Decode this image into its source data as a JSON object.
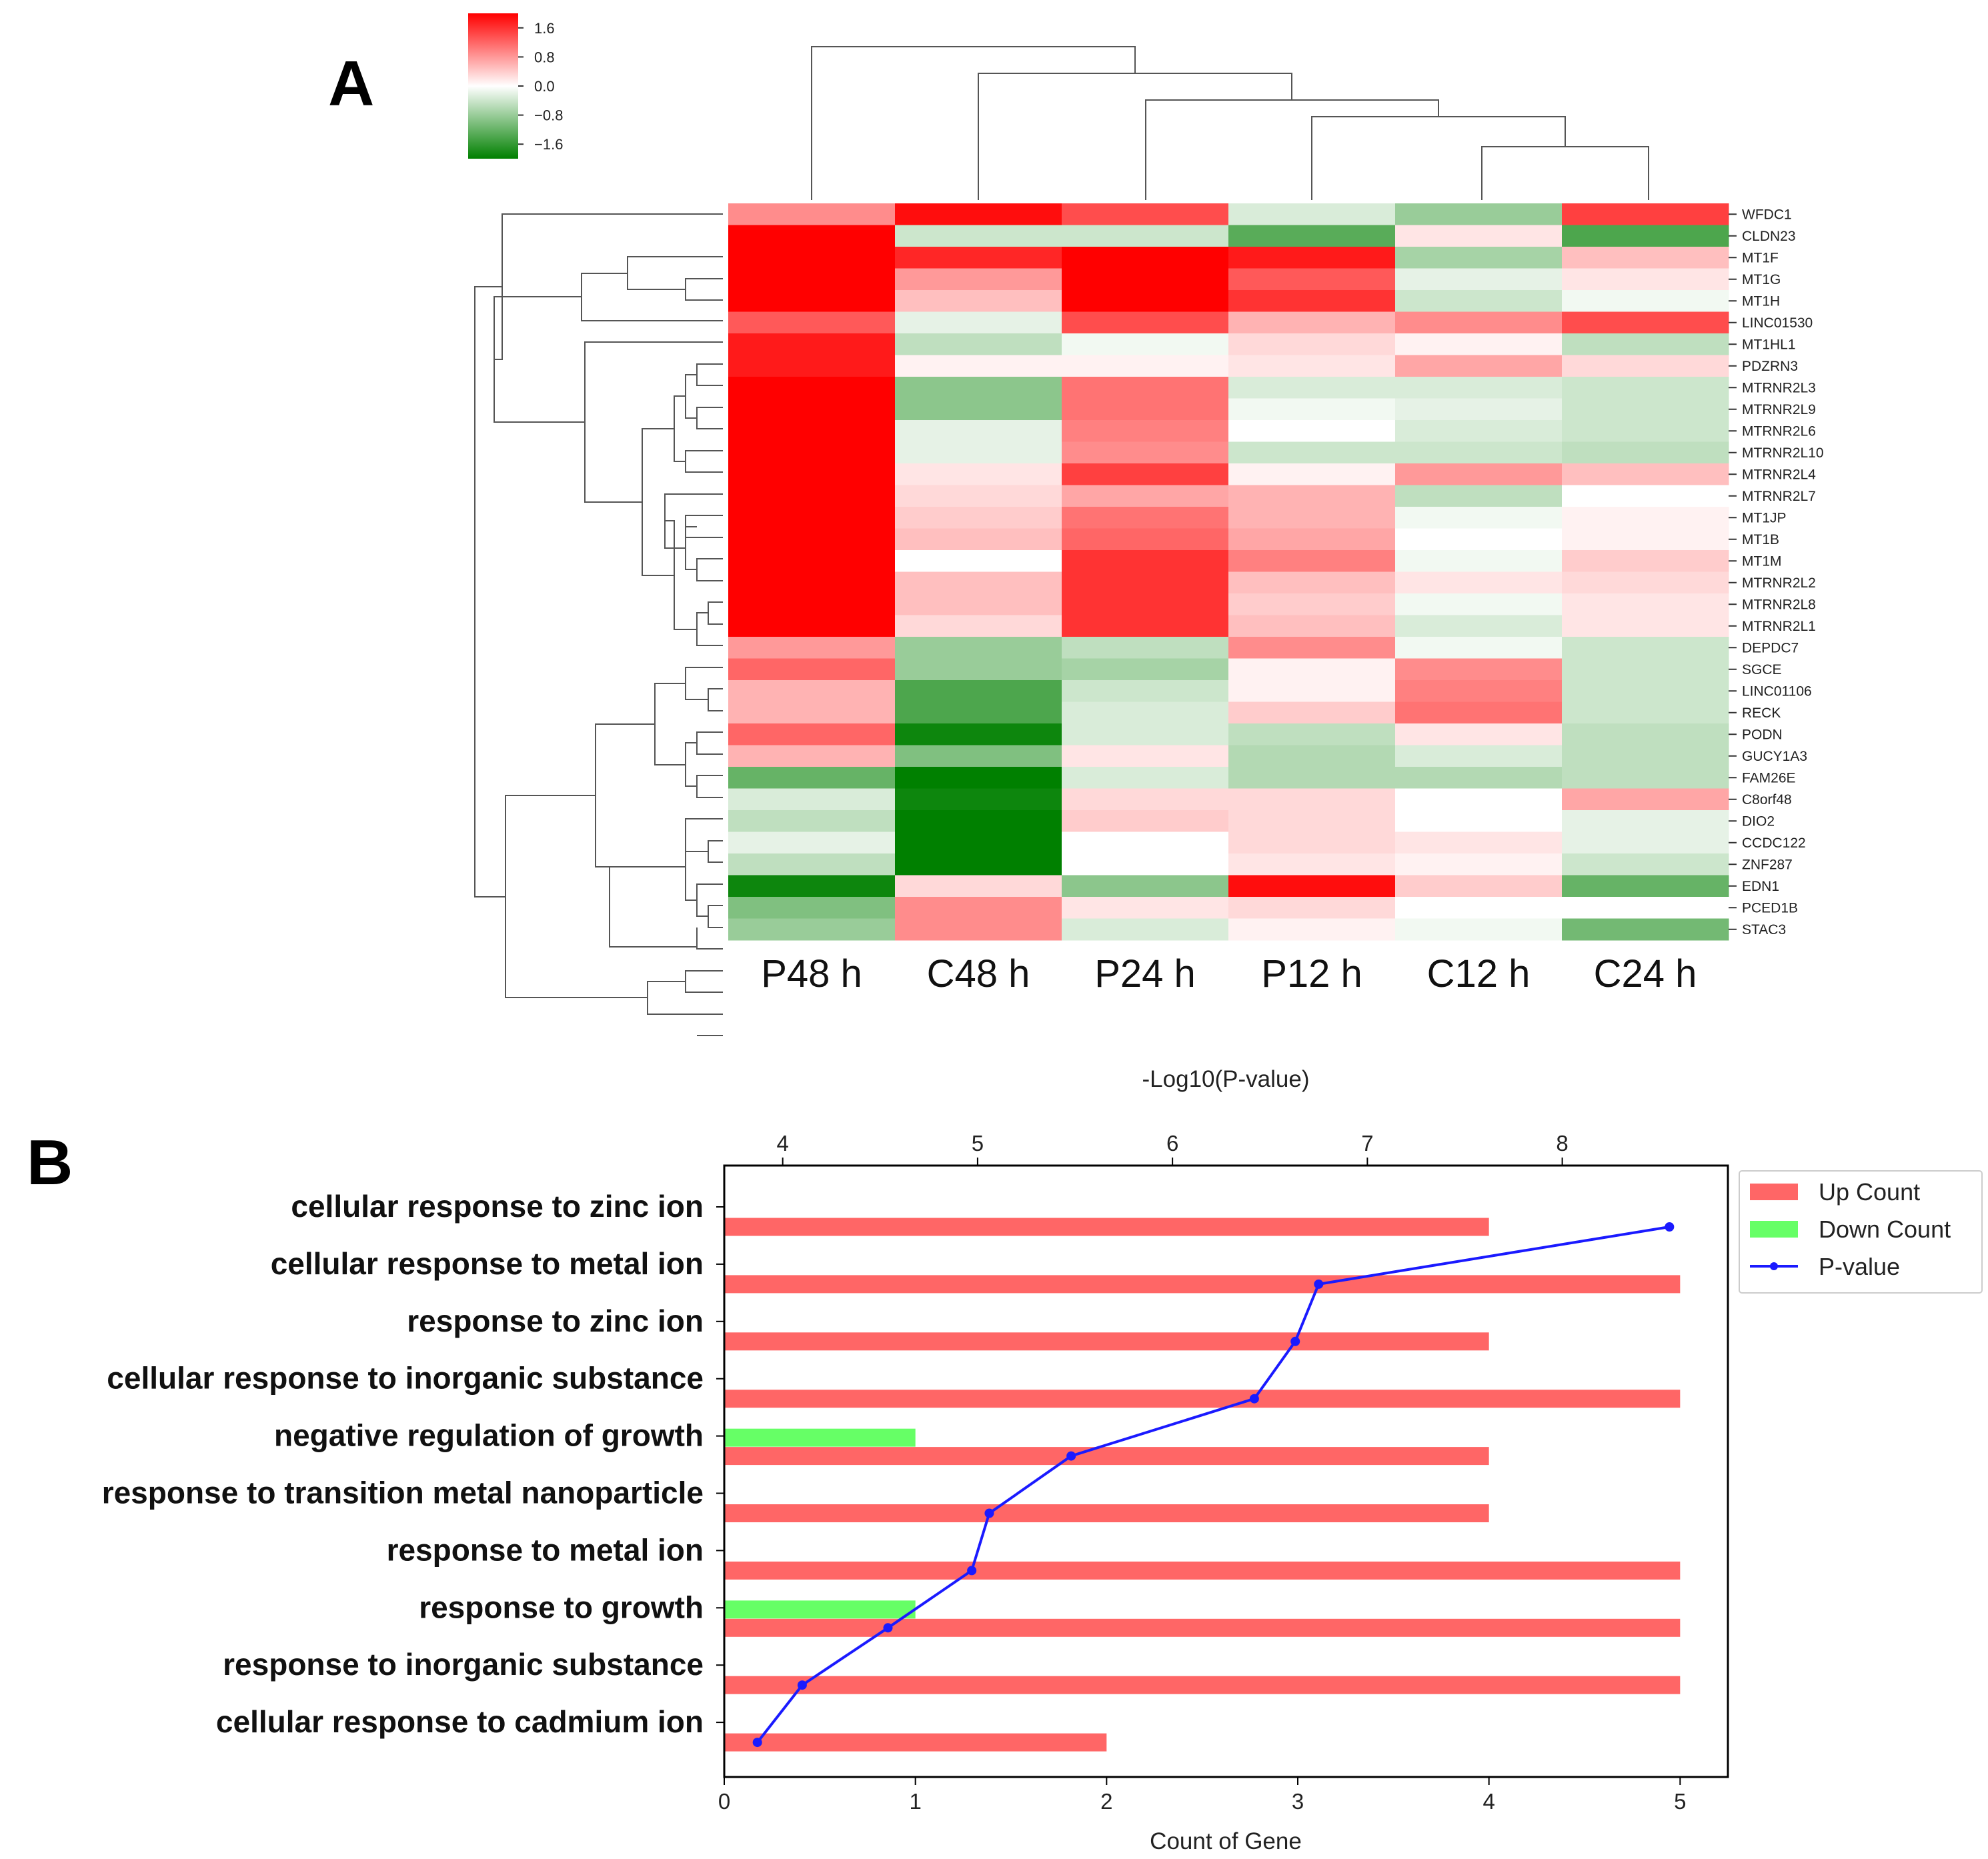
{
  "panel_a": {
    "letter": "A",
    "colorbar": {
      "ticks": [
        "1.6",
        "0.8",
        "0.0",
        "−0.8",
        "−1.6"
      ],
      "tick_values": [
        1.6,
        0.8,
        0.0,
        -0.8,
        -1.6
      ],
      "range": [
        -2.0,
        2.0
      ],
      "high_color": "#ff0000",
      "mid_color": "#ffffff",
      "low_color": "#008000"
    }
  },
  "panel_b": {
    "letter": "B",
    "legend": {
      "up_label": "Up Count",
      "down_label": "Down Count",
      "pvalue_label": "P-value"
    },
    "colors": {
      "up": "#ff6666",
      "down": "#66ff66",
      "line": "#1a1aff"
    }
  },
  "chart_data": [
    {
      "type": "heatmap",
      "title": "",
      "columns": [
        "P48 h",
        "C48 h",
        "P24 h",
        "P12 h",
        "C12 h",
        "C24 h"
      ],
      "rows": [
        "WFDC1",
        "CLDN23",
        "MT1F",
        "MT1G",
        "MT1H",
        "LINC01530",
        "MT1HL1",
        "PDZRN3",
        "MTRNR2L3",
        "MTRNR2L9",
        "MTRNR2L6",
        "MTRNR2L10",
        "MTRNR2L4",
        "MTRNR2L7",
        "MT1JP",
        "MT1B",
        "MT1M",
        "MTRNR2L2",
        "MTRNR2L8",
        "MTRNR2L1",
        "DEPDC7",
        "SGCE",
        "LINC01106",
        "RECK",
        "PODN",
        "GUCY1A3",
        "FAM26E",
        "C8orf48",
        "DIO2",
        "CCDC122",
        "ZNF287",
        "EDN1",
        "PCED1B",
        "STAC3"
      ],
      "values": [
        [
          0.9,
          1.9,
          1.4,
          -0.3,
          -0.8,
          1.5
        ],
        [
          2.0,
          -0.4,
          -0.4,
          -1.3,
          0.2,
          -1.4
        ],
        [
          2.0,
          1.7,
          2.0,
          1.8,
          -0.7,
          0.5
        ],
        [
          2.0,
          0.8,
          2.0,
          1.3,
          -0.2,
          0.2
        ],
        [
          2.0,
          0.5,
          2.0,
          1.6,
          -0.4,
          -0.1
        ],
        [
          1.3,
          -0.2,
          1.4,
          0.6,
          0.9,
          1.4
        ],
        [
          1.8,
          -0.5,
          -0.1,
          0.3,
          0.1,
          -0.5
        ],
        [
          1.8,
          0.1,
          0.1,
          0.2,
          0.7,
          0.3
        ],
        [
          2.0,
          -0.9,
          1.1,
          -0.3,
          -0.3,
          -0.4
        ],
        [
          2.0,
          -0.9,
          1.1,
          -0.1,
          -0.2,
          -0.4
        ],
        [
          2.0,
          -0.2,
          1.0,
          0.0,
          -0.3,
          -0.4
        ],
        [
          2.0,
          -0.2,
          0.9,
          -0.4,
          -0.4,
          -0.5
        ],
        [
          2.0,
          0.2,
          1.5,
          0.1,
          0.8,
          0.5
        ],
        [
          2.0,
          0.3,
          0.7,
          0.6,
          -0.5,
          0.0
        ],
        [
          2.0,
          0.4,
          1.1,
          0.6,
          -0.1,
          0.1
        ],
        [
          2.0,
          0.5,
          1.2,
          0.7,
          0.0,
          0.1
        ],
        [
          2.0,
          0.0,
          1.6,
          1.0,
          -0.1,
          0.4
        ],
        [
          2.0,
          0.5,
          1.6,
          0.5,
          0.2,
          0.3
        ],
        [
          2.0,
          0.5,
          1.6,
          0.4,
          -0.1,
          0.2
        ],
        [
          2.0,
          0.3,
          1.6,
          0.5,
          -0.3,
          0.2
        ],
        [
          0.8,
          -0.8,
          -0.5,
          0.9,
          -0.1,
          -0.4
        ],
        [
          1.2,
          -0.8,
          -0.7,
          0.1,
          0.9,
          -0.4
        ],
        [
          0.6,
          -1.4,
          -0.4,
          0.1,
          1.0,
          -0.4
        ],
        [
          0.6,
          -1.4,
          -0.3,
          0.4,
          1.1,
          -0.4
        ],
        [
          1.2,
          -1.9,
          -0.3,
          -0.5,
          0.2,
          -0.5
        ],
        [
          0.6,
          -1.0,
          0.2,
          -0.6,
          -0.3,
          -0.5
        ],
        [
          -1.2,
          -2.0,
          -0.3,
          -0.6,
          -0.6,
          -0.5
        ],
        [
          -0.3,
          -1.9,
          0.3,
          0.3,
          0.0,
          0.7
        ],
        [
          -0.5,
          -2.0,
          0.4,
          0.3,
          0.0,
          -0.2
        ],
        [
          -0.2,
          -2.0,
          0.0,
          0.3,
          0.2,
          -0.2
        ],
        [
          -0.5,
          -2.0,
          0.0,
          0.2,
          0.1,
          -0.4
        ],
        [
          -1.9,
          0.3,
          -0.9,
          1.9,
          0.4,
          -1.2
        ],
        [
          -1.0,
          0.9,
          0.2,
          0.3,
          0.0,
          0.0
        ],
        [
          -0.8,
          0.9,
          -0.3,
          0.1,
          -0.1,
          -1.1
        ]
      ],
      "colormap": "green-white-red",
      "colorbar_range": [
        -2.0,
        2.0
      ]
    },
    {
      "type": "bar",
      "orientation": "horizontal",
      "categories": [
        "cellular response to zinc ion",
        "cellular response to metal ion",
        "response to zinc ion",
        "cellular response to inorganic substance",
        "negative regulation of growth",
        "response to transition metal nanoparticle",
        "response to metal ion",
        "response to growth",
        "response to inorganic substance",
        "cellular response to cadmium ion"
      ],
      "series": [
        {
          "name": "Up Count",
          "type": "bar",
          "axis": "bottom",
          "values": [
            4,
            5,
            4,
            5,
            4,
            4,
            5,
            5,
            5,
            2
          ]
        },
        {
          "name": "Down Count",
          "type": "bar",
          "axis": "bottom",
          "values": [
            0,
            0,
            0,
            0,
            1,
            0,
            0,
            1,
            0,
            0
          ]
        },
        {
          "name": "P-value",
          "type": "line",
          "axis": "top",
          "values": [
            8.55,
            6.75,
            6.63,
            6.42,
            5.48,
            5.06,
            4.97,
            4.54,
            4.1,
            3.87
          ]
        }
      ],
      "xlabel": "Count of Gene",
      "xlim": [
        0,
        5.25
      ],
      "xticks": [
        0,
        1,
        2,
        3,
        4,
        5
      ],
      "x2label": "-Log10(P-value)",
      "x2lim": [
        3.7,
        8.85
      ],
      "x2ticks": [
        4,
        5,
        6,
        7,
        8
      ],
      "legend_position": "upper-right-outside"
    }
  ]
}
